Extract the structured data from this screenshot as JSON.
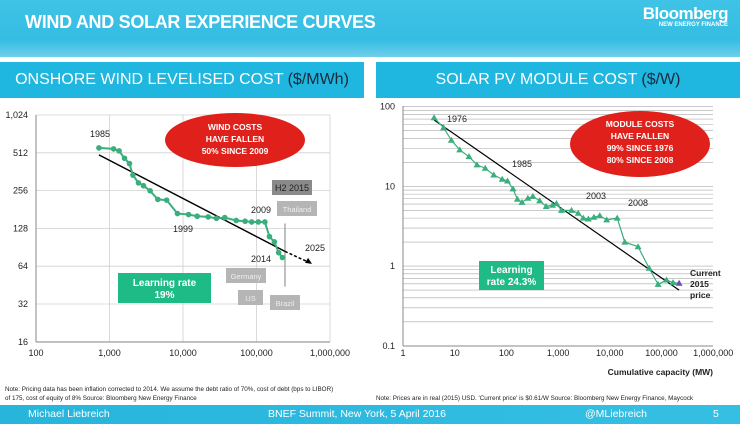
{
  "header": {
    "title": "WIND AND SOLAR EXPERIENCE CURVES",
    "logo": "Bloomberg",
    "logo_sub": "NEW ENERGY FINANCE"
  },
  "panels": [
    {
      "title": "ONSHORE WIND LEVELISED COST",
      "unit": "($/MWh)"
    },
    {
      "title": "SOLAR PV MODULE COST",
      "unit": "($/W)"
    }
  ],
  "notes": [
    "Note: Pricing data has been inflation corrected to 2014. We assume the debt ratio of 70%, cost of debt (bps to LIBOR) of 175, cost of equity of 8%  Source: Bloomberg New Energy Finance",
    "Note: Prices are in real (2015) USD. 'Current price' is $0.61/W  Source: Bloomberg New Energy Finance, Maycock"
  ],
  "footer": {
    "author": "Michael Liebreich",
    "event": "BNEF Summit, New York, 5 April 2016",
    "handle": "@MLiebreich",
    "page": "5"
  },
  "colors": {
    "accent": "#1fb6df",
    "series": "#3aae7c",
    "callout": "#e0201b",
    "learning": "#1fbb86",
    "label_box": "#b5b5b5"
  },
  "chart_data": [
    {
      "type": "line",
      "xscale": "log",
      "yscale": "log2",
      "xlim": [
        100,
        1000000
      ],
      "ylim": [
        16,
        1024
      ],
      "grid": true,
      "xticks": [
        "100",
        "1,000",
        "10,000",
        "100,000",
        "1,000,000"
      ],
      "yticks": [
        "16",
        "32",
        "64",
        "128",
        "256",
        "512",
        "1,024"
      ],
      "series": [
        {
          "x": [
            718,
            1136,
            1350,
            1600,
            1870,
            2080,
            2480,
            2900,
            3570,
            4540,
            6000,
            8400,
            11900,
            15600,
            22000,
            28500,
            37000,
            53000,
            70000,
            86000,
            106000,
            130000,
            150000,
            175000,
            200000,
            225000
          ],
          "y": [
            560,
            550,
            530,
            463,
            420,
            340,
            295,
            280,
            255,
            218,
            215,
            168,
            165,
            160,
            158,
            154,
            156,
            148,
            146,
            144,
            144,
            144,
            110,
            100,
            82,
            75
          ]
        }
      ],
      "trend": {
        "x": [
          718,
          244000
        ],
        "y": [
          493,
          84
        ]
      },
      "projection": {
        "x": [
          244000,
          535000
        ],
        "y": [
          84,
          68
        ]
      },
      "range_2015": {
        "x": 244000,
        "high": 140,
        "low": 44
      },
      "annotations": [
        "1985",
        "1999",
        "2009",
        "2014",
        "2025"
      ],
      "range_labels": [
        "H2 2015",
        "Thailand",
        "Germany",
        "US",
        "Brazil"
      ],
      "callout": [
        "WIND COSTS",
        "HAVE FALLEN",
        "50% SINCE 2009"
      ],
      "learning": [
        "Learning rate",
        "19%"
      ]
    },
    {
      "type": "line",
      "xscale": "log",
      "yscale": "log",
      "xlim": [
        1,
        1000000
      ],
      "ylim": [
        0.1,
        100
      ],
      "grid": true,
      "xlabel": "Cumulative capacity (MW)",
      "xticks": [
        "1",
        "10",
        "100",
        "1,000",
        "10,000",
        "100,000",
        "1,000,000"
      ],
      "yticks": [
        "0.1",
        "1",
        "10",
        "100"
      ],
      "series": [
        {
          "x": [
            4,
            6.1,
            8.6,
            12.5,
            18.9,
            27,
            39,
            57,
            83,
            105,
            134,
            163,
            200,
            260,
            325,
            440,
            590,
            780,
            930,
            1160,
            1820,
            2450,
            3070,
            3850,
            4930,
            6400,
            8700,
            13900,
            19500,
            35200,
            57700,
            86000,
            125000,
            167000,
            219000
          ],
          "y": [
            72.8,
            54.5,
            38,
            28.7,
            23.6,
            18.6,
            16.9,
            13.9,
            12.3,
            11.7,
            9.3,
            6.9,
            6.3,
            7.1,
            7.5,
            6.6,
            5.6,
            5.8,
            6.1,
            5.0,
            5.0,
            4.6,
            4.0,
            3.9,
            4.1,
            4.3,
            3.8,
            4.0,
            2.0,
            1.75,
            0.94,
            0.59,
            0.67,
            0.62,
            0.61
          ]
        }
      ],
      "trend": {
        "x": [
          4,
          219000
        ],
        "y": [
          68,
          0.5
        ]
      },
      "annotations": [
        "1976",
        "1985",
        "2003",
        "2008"
      ],
      "current_label": [
        "Current",
        "2015",
        "price"
      ],
      "callout": [
        "MODULE COSTS",
        "HAVE FALLEN",
        "99% SINCE 1976",
        "80% SINCE 2008"
      ],
      "learning": [
        "Learning",
        "rate 24.3%"
      ]
    }
  ]
}
